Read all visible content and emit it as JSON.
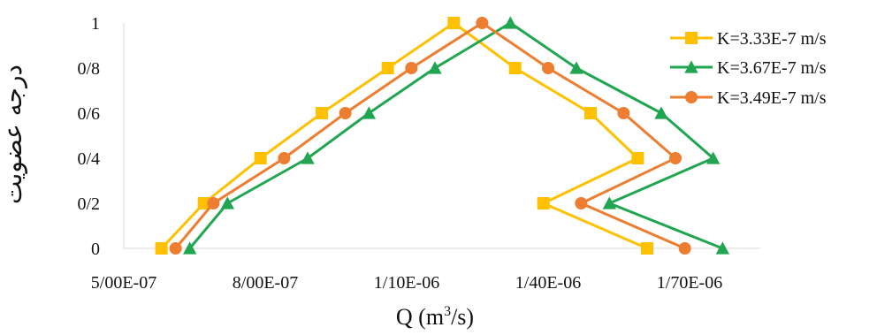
{
  "chart_data": {
    "type": "line",
    "xlabel": "Q (m³/s)",
    "xlabel_base": "Q (m",
    "xlabel_sup": "3",
    "xlabel_tail": "/s)",
    "ylabel": "درجه عضویت",
    "xlim": [
      5e-07,
      1.85e-06
    ],
    "ylim": [
      0,
      1
    ],
    "x_ticks": [
      5e-07,
      8e-07,
      1.1e-06,
      1.4e-06,
      1.7e-06
    ],
    "x_tick_labels": [
      "5/00E-07",
      "8/00E-07",
      "1/10E-06",
      "1/40E-06",
      "1/70E-06"
    ],
    "y_ticks": [
      0,
      0.2,
      0.4,
      0.6,
      0.8,
      1
    ],
    "y_tick_labels": [
      "0",
      "0/2",
      "0/4",
      "0/6",
      "0/8",
      "1"
    ],
    "legend_position": "right",
    "series": [
      {
        "name": "K=3.33E-7 m/s",
        "color": "#FFC000",
        "marker": "square",
        "x": [
          5.8e-07,
          6.7e-07,
          7.9e-07,
          9.2e-07,
          1.06e-06,
          1.2e-06,
          1.33e-06,
          1.49e-06,
          1.59e-06,
          1.39e-06,
          1.61e-06
        ],
        "y": [
          0,
          0.2,
          0.4,
          0.6,
          0.8,
          1,
          0.8,
          0.6,
          0.4,
          0.2,
          0
        ]
      },
      {
        "name": "K=3.67E-7 m/s",
        "color": "#20A650",
        "marker": "triangle",
        "x": [
          6.4e-07,
          7.2e-07,
          8.9e-07,
          1.02e-06,
          1.16e-06,
          1.32e-06,
          1.46e-06,
          1.64e-06,
          1.75e-06,
          1.53e-06,
          1.77e-06
        ],
        "y": [
          0,
          0.2,
          0.4,
          0.6,
          0.8,
          1,
          0.8,
          0.6,
          0.4,
          0.2,
          0
        ]
      },
      {
        "name": "K=3.49E-7 m/s",
        "color": "#ED7D31",
        "marker": "circle",
        "x": [
          6.1e-07,
          6.9e-07,
          8.4e-07,
          9.7e-07,
          1.11e-06,
          1.26e-06,
          1.4e-06,
          1.56e-06,
          1.67e-06,
          1.47e-06,
          1.69e-06
        ],
        "y": [
          0,
          0.2,
          0.4,
          0.6,
          0.8,
          1,
          0.8,
          0.6,
          0.4,
          0.2,
          0
        ]
      }
    ]
  }
}
